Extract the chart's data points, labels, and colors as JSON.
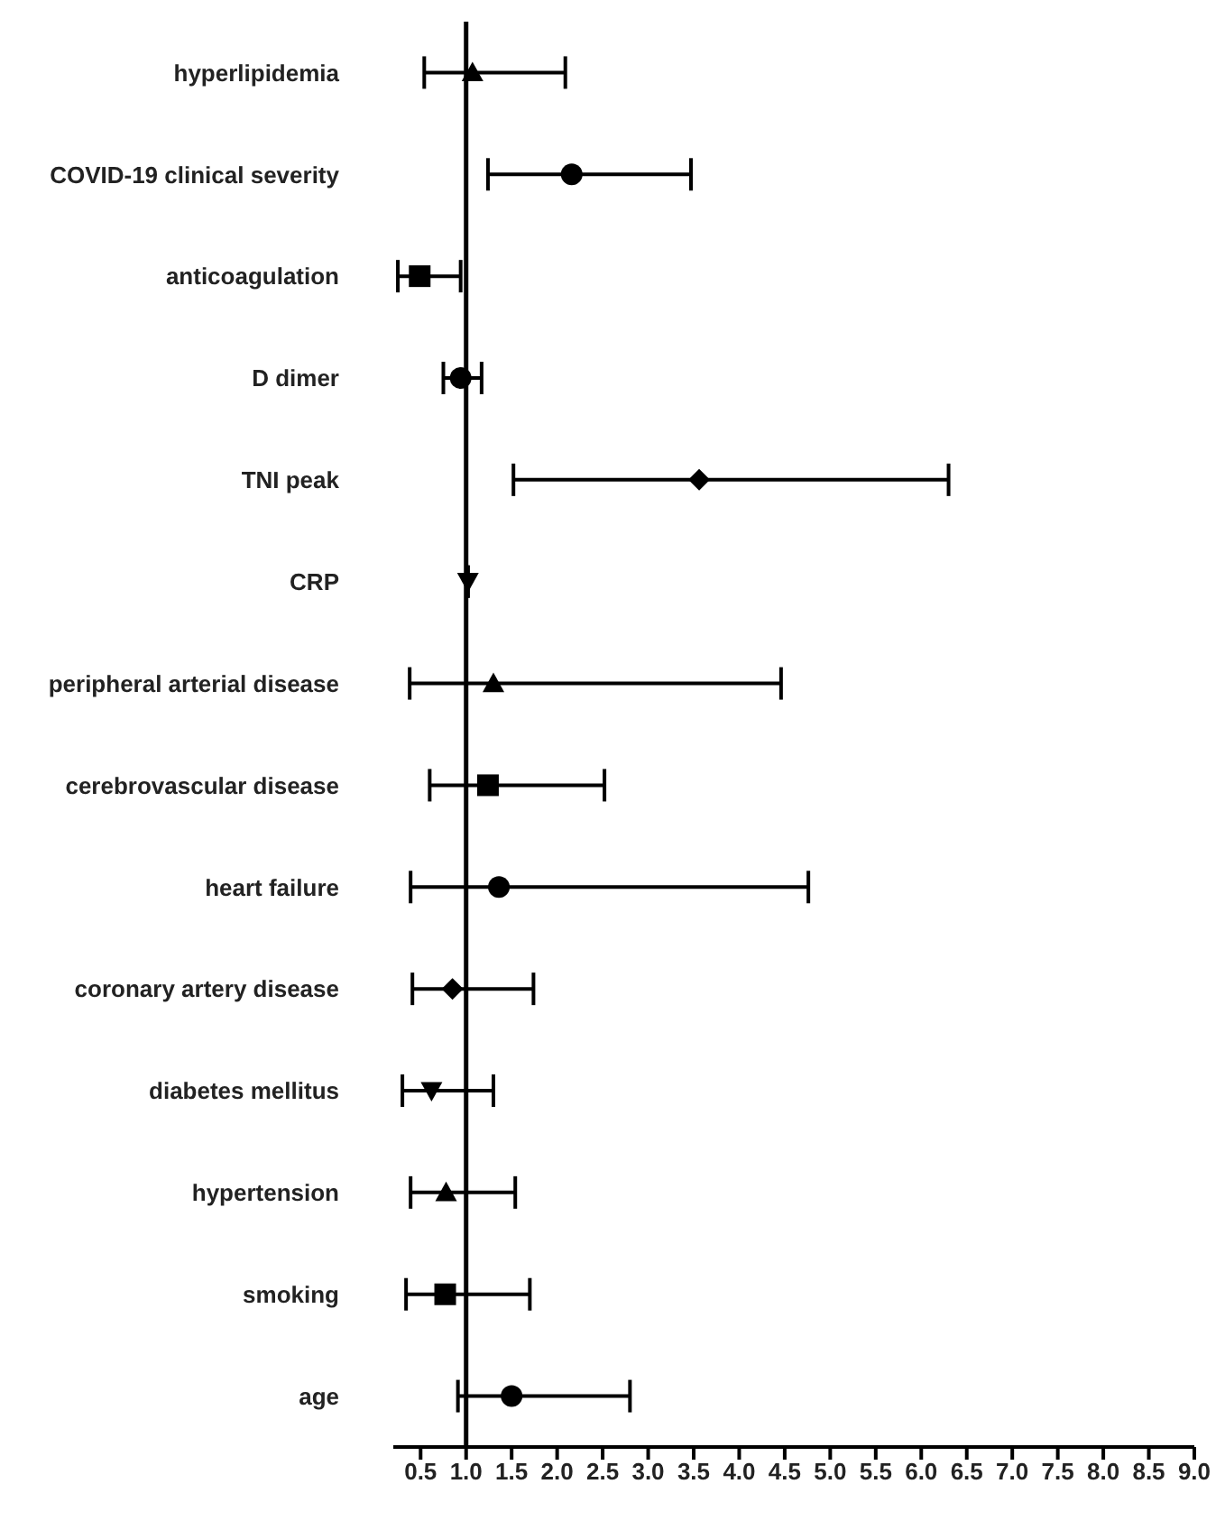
{
  "chart_data": {
    "type": "scatter",
    "orientation": "horizontal",
    "categories": [
      "hyperlipidemia",
      "COVID-19 clinical severity",
      "anticoagulation",
      "D dimer",
      "TNI peak",
      "CRP",
      "peripheral arterial disease",
      "cerebrovascular disease",
      "heart failure",
      "coronary artery disease",
      "diabetes mellitus",
      "hypertension",
      "smoking",
      "age"
    ],
    "series": [
      {
        "marker": "circle",
        "color": "#000000",
        "values": [
          null,
          2.16,
          null,
          0.94,
          null,
          null,
          null,
          null,
          1.36,
          null,
          null,
          null,
          null,
          1.5
        ],
        "errors": [
          null,
          [
            1.24,
            3.47
          ],
          null,
          [
            0.75,
            1.17
          ],
          null,
          null,
          null,
          null,
          [
            0.39,
            4.76
          ],
          null,
          null,
          null,
          null,
          [
            0.91,
            2.8
          ]
        ]
      },
      {
        "marker": "square",
        "color": "#000000",
        "values": [
          null,
          null,
          0.49,
          null,
          null,
          null,
          null,
          1.24,
          null,
          null,
          null,
          null,
          0.77,
          null
        ],
        "errors": [
          null,
          null,
          [
            0.25,
            0.94
          ],
          null,
          null,
          null,
          null,
          [
            0.6,
            2.52
          ],
          null,
          null,
          null,
          null,
          [
            0.34,
            1.7
          ],
          null
        ]
      },
      {
        "marker": "triangle",
        "color": "#000000",
        "values": [
          1.07,
          null,
          null,
          null,
          null,
          null,
          1.3,
          null,
          null,
          null,
          null,
          0.78,
          null,
          null
        ],
        "errors": [
          [
            0.54,
            2.09
          ],
          null,
          null,
          null,
          null,
          null,
          [
            0.38,
            4.46
          ],
          null,
          null,
          null,
          null,
          [
            0.39,
            1.54
          ],
          null,
          null
        ]
      },
      {
        "marker": "triangle-down",
        "color": "#000000",
        "values": [
          null,
          null,
          null,
          null,
          null,
          1.02,
          null,
          null,
          null,
          null,
          0.62,
          null,
          null,
          null
        ],
        "errors": [
          null,
          null,
          null,
          null,
          null,
          null,
          null,
          null,
          null,
          null,
          [
            0.3,
            1.3
          ],
          null,
          null,
          null
        ]
      },
      {
        "marker": "diamond",
        "color": "#000000",
        "values": [
          null,
          null,
          null,
          null,
          3.56,
          null,
          null,
          null,
          null,
          0.85,
          null,
          null,
          null,
          null
        ],
        "errors": [
          null,
          null,
          null,
          null,
          [
            1.52,
            6.3
          ],
          null,
          null,
          null,
          null,
          [
            0.41,
            1.74
          ],
          null,
          null,
          null,
          null
        ]
      }
    ],
    "xlim": [
      0.2,
      9.0
    ],
    "xticks": [
      0.5,
      {
        "value": 1,
        "label": "1.0"
      },
      1.5,
      {
        "value": 2,
        "label": "2.0"
      },
      2.5,
      {
        "value": 3,
        "label": "3.0"
      },
      3.5,
      {
        "value": 4,
        "label": "4.0"
      },
      4.5,
      {
        "value": 5,
        "label": "5.0"
      },
      5.5,
      {
        "value": 6,
        "label": "6.0"
      },
      6.5,
      {
        "value": 7,
        "label": "7.0"
      },
      7.5,
      {
        "value": 8,
        "label": "8.0"
      },
      8.5,
      {
        "value": 9,
        "label": "9.0"
      }
    ],
    "ref_lines": [
      {
        "axis": "x",
        "value": 1.0,
        "color": "#000000"
      }
    ],
    "grid": false,
    "legend": false
  }
}
